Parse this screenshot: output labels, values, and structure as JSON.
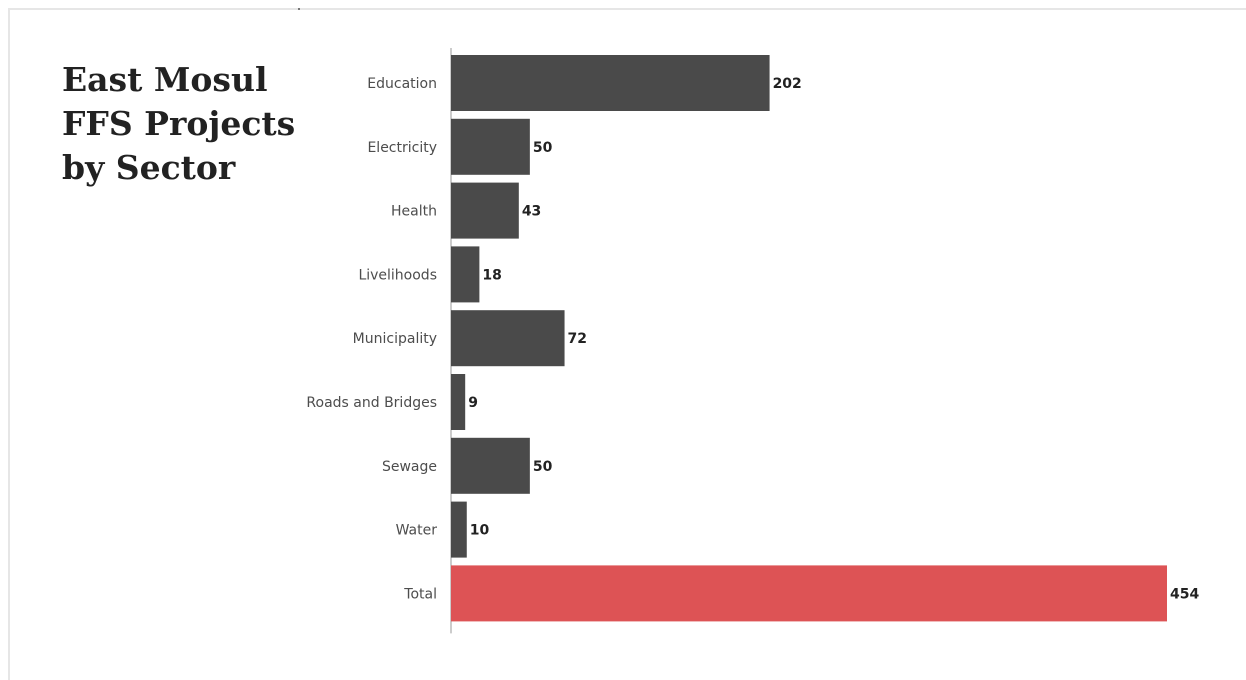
{
  "title_lines": [
    "East Mosul",
    "FFS Projects",
    "by Sector"
  ],
  "chart_data": {
    "type": "bar",
    "orientation": "horizontal",
    "title": "East Mosul FFS Projects by Sector",
    "categories": [
      "Education",
      "Electricity",
      "Health",
      "Livelihoods",
      "Municipality",
      "Roads and Bridges",
      "Sewage",
      "Water",
      "Total"
    ],
    "values": [
      202,
      50,
      43,
      18,
      72,
      9,
      50,
      10,
      454
    ],
    "xlim": [
      0,
      454
    ],
    "grid": false,
    "legend": "none",
    "colors": {
      "bar": "#4a4a4a",
      "highlight_bar": "#dd5355",
      "axis": "#999999"
    },
    "highlight_category": "Total"
  }
}
